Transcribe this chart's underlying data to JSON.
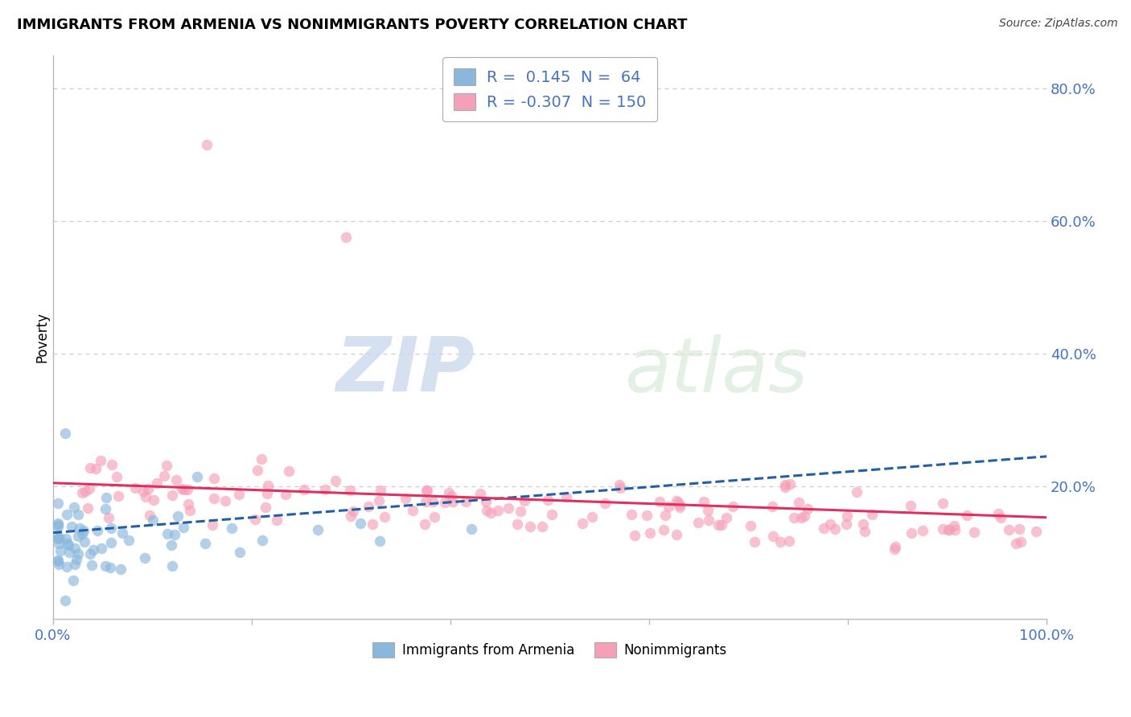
{
  "title": "IMMIGRANTS FROM ARMENIA VS NONIMMIGRANTS POVERTY CORRELATION CHART",
  "source": "Source: ZipAtlas.com",
  "ylabel": "Poverty",
  "watermark_zip": "ZIP",
  "watermark_atlas": "atlas",
  "R_blue": 0.145,
  "N_blue": 64,
  "R_pink": -0.307,
  "N_pink": 150,
  "xlim": [
    0,
    1
  ],
  "ylim": [
    0,
    0.85
  ],
  "yticks": [
    0.0,
    0.2,
    0.4,
    0.6,
    0.8
  ],
  "ytick_labels": [
    "",
    "20.0%",
    "40.0%",
    "60.0%",
    "80.0%"
  ],
  "xtick_positions": [
    0.0,
    0.2,
    0.4,
    0.6,
    0.8,
    1.0
  ],
  "xtick_labels": [
    "0.0%",
    "",
    "",
    "",
    "",
    "100.0%"
  ],
  "blue_scatter_color": "#8ab8dc",
  "pink_scatter_color": "#f5a0b8",
  "blue_line_color": "#2060a8",
  "pink_line_color": "#e03060",
  "grid_color": "#cccccc",
  "background_color": "#ffffff",
  "title_fontsize": 13,
  "source_fontsize": 10,
  "axis_label_color": "#4472c4",
  "blue_seed": 12,
  "pink_seed": 77
}
